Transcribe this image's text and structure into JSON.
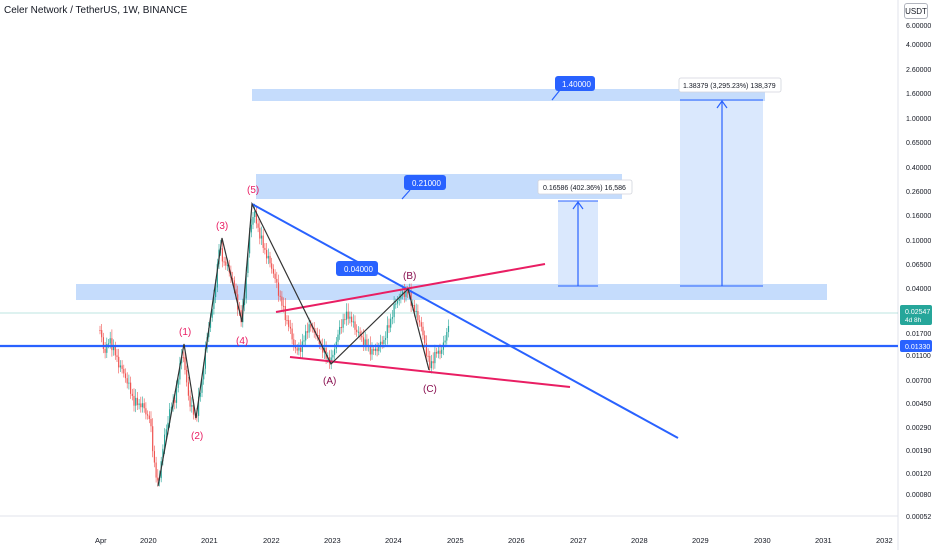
{
  "header": {
    "symbol": "Celer Network / TetherUS",
    "interval": "1W",
    "exchange": "BINANCE",
    "title_sep": ", ",
    "currency": "USDT"
  },
  "y_axis": {
    "scale": "log",
    "labels": [
      "6.00000",
      "4.00000",
      "2.60000",
      "1.60000",
      "1.00000",
      "0.65000",
      "0.40000",
      "0.26000",
      "0.16000",
      "0.10000",
      "0.06500",
      "0.04000",
      "0.02547",
      "0.01700",
      "0.01330",
      "0.01100",
      "0.00700",
      "0.00450",
      "0.00290",
      "0.00190",
      "0.00120",
      "0.00080",
      "0.00052"
    ]
  },
  "x_axis": {
    "labels": [
      "Apr",
      "2020",
      "2021",
      "2022",
      "2023",
      "2024",
      "2025",
      "2026",
      "2027",
      "2028",
      "2029",
      "2030",
      "2031",
      "2032"
    ]
  },
  "price_badges": {
    "current_price": "0.02547",
    "countdown": "4d 8h",
    "support_price": "0.01330",
    "current_color": "#26a69a",
    "support_color": "#2962ff"
  },
  "target_labels": {
    "t1": "0.04000",
    "t2": "0.21000",
    "t3": "1.40000"
  },
  "measures": {
    "m1": "0.16586 (402.36%) 16,586",
    "m2": "1.38379 (3,295.23%) 138,379"
  },
  "wave_labels": {
    "w1": "(1)",
    "w2": "(2)",
    "w3": "(3)",
    "w4": "(4)",
    "w5": "(5)",
    "wa": "(A)",
    "wb": "(B)",
    "wc": "(C)"
  },
  "colors": {
    "up": "#26a69a",
    "down": "#ef5350",
    "zone_fill": "#bbd6fb",
    "blue_line": "#2962ff",
    "pink_line": "#e91e63",
    "wave_label": "#e91e63",
    "abc_label": "#880e4f"
  }
}
